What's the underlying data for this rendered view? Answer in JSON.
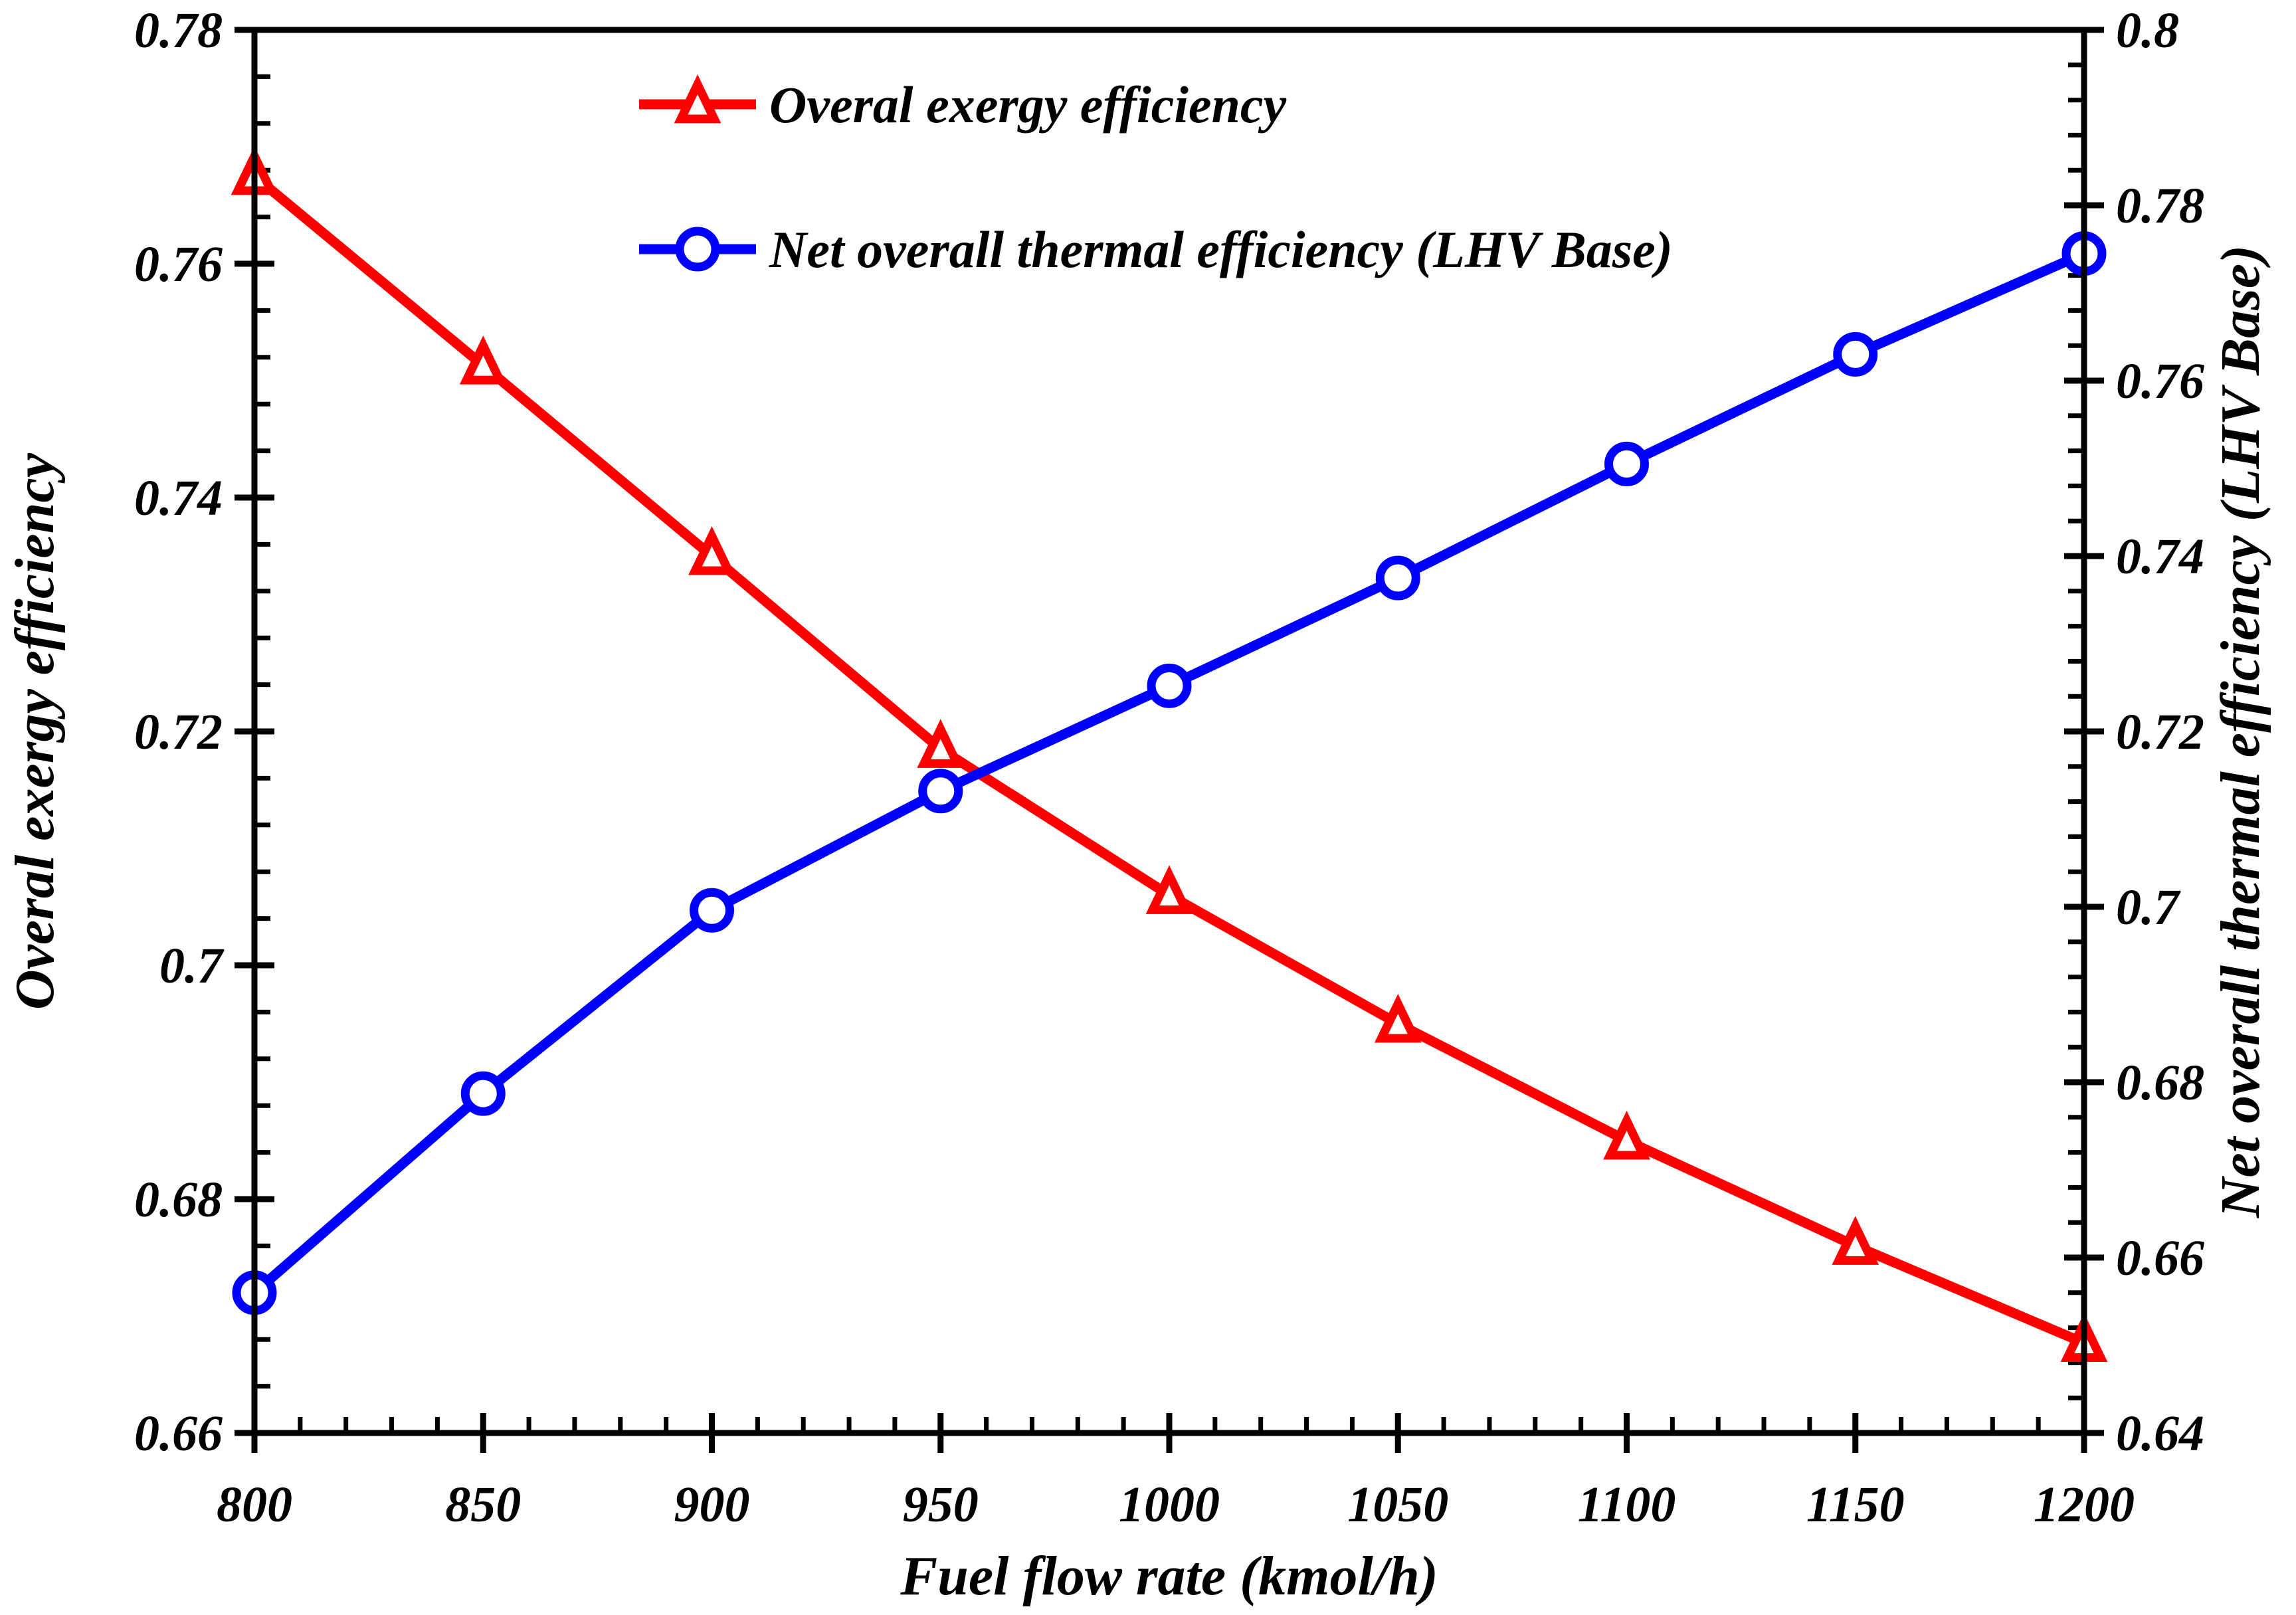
{
  "figure": {
    "background": "#ffffff",
    "frame_color": "#000000"
  },
  "chart_data": {
    "type": "line",
    "x_label": "Fuel flow rate (kmol/h)",
    "x": [
      800,
      850,
      900,
      950,
      1000,
      1050,
      1100,
      1150,
      1200
    ],
    "x_ticks": {
      "min": 800,
      "max": 1200,
      "major_step": 50,
      "minor_step": 10,
      "labels": [
        "800",
        "850",
        "900",
        "950",
        "1000",
        "1050",
        "1100",
        "1150",
        "1200"
      ]
    },
    "axes": {
      "left": {
        "label": "Overal exergy efficiency",
        "min": 0.66,
        "max": 0.78,
        "major_step": 0.02,
        "minor_step": 0.004,
        "tick_labels": [
          "0.66",
          "0.68",
          "0.7",
          "0.72",
          "0.74",
          "0.76",
          "0.78"
        ]
      },
      "right": {
        "label": "Net overall thermal efficiency (LHV Base)",
        "min": 0.64,
        "max": 0.8,
        "major_step": 0.02,
        "minor_step": 0.004,
        "tick_labels": [
          "0.64",
          "0.66",
          "0.68",
          "0.7",
          "0.72",
          "0.74",
          "0.76",
          "0.78",
          "0.8"
        ]
      }
    },
    "series": [
      {
        "name": "Overal exergy efficiency",
        "axis": "left",
        "color": "#ff0000",
        "marker": "triangle",
        "values": [
          0.7675,
          0.7513,
          0.735,
          0.7185,
          0.706,
          0.695,
          0.685,
          0.676,
          0.6677
        ]
      },
      {
        "name": "Net overall thermal efficiency (LHV Base)",
        "axis": "right",
        "color": "#0000ff",
        "marker": "circle",
        "values": [
          0.656,
          0.6787,
          0.6996,
          0.7132,
          0.7252,
          0.7375,
          0.7505,
          0.763,
          0.7745
        ]
      }
    ],
    "legend": {
      "position": "upper-left-inside",
      "entries": [
        "Overal exergy efficiency",
        "Net overall thermal efficiency (LHV Base)"
      ]
    },
    "grid": false
  }
}
